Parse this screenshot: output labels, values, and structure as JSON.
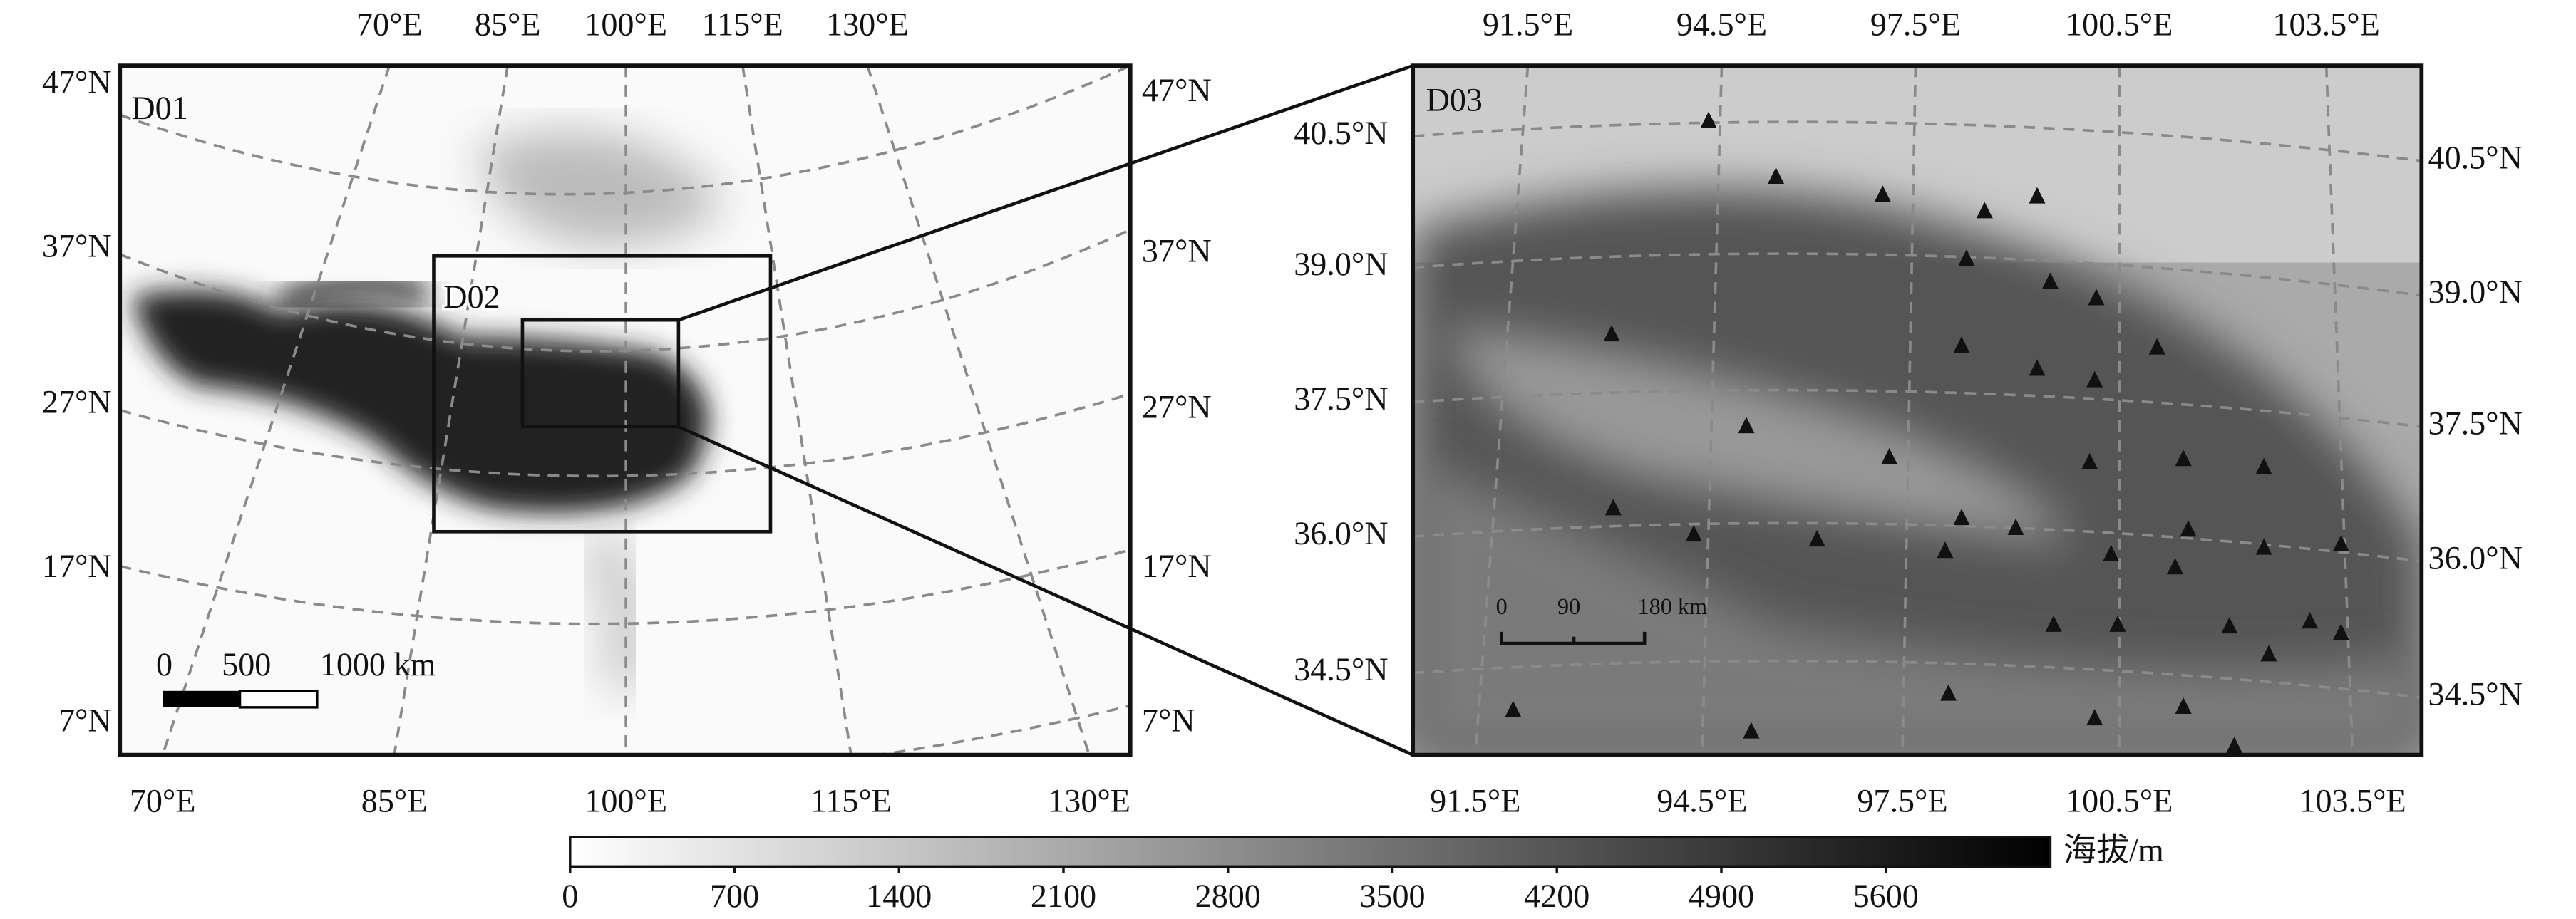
{
  "maps": [
    {
      "label": "D01",
      "inner_label": "D02",
      "lon_top": [
        "70°E",
        "85°E",
        "100°E",
        "115°E",
        "130°E"
      ],
      "lon_bottom": [
        "70°E",
        "85°E",
        "100°E",
        "115°E",
        "130°E"
      ],
      "lat_left": [
        "47°N",
        "37°N",
        "27°N",
        "17°N",
        "7°N"
      ],
      "lat_right": [
        "47°N",
        "37°N",
        "27°N",
        "17°N",
        "7°N"
      ],
      "scale": [
        "0",
        "500",
        "1000 km"
      ]
    },
    {
      "label": "D03",
      "lon_top": [
        "91.5°E",
        "94.5°E",
        "97.5°E",
        "100.5°E",
        "103.5°E"
      ],
      "lon_bottom": [
        "91.5°E",
        "94.5°E",
        "97.5°E",
        "100.5°E",
        "103.5°E"
      ],
      "lat_left": [
        "40.5°N",
        "39.0°N",
        "37.5°N",
        "36.0°N",
        "34.5°N"
      ],
      "lat_right": [
        "40.5°N",
        "39.0°N",
        "37.5°N",
        "36.0°N",
        "34.5°N"
      ],
      "scale": [
        "0",
        "90",
        "180 km"
      ]
    }
  ],
  "colorbar": {
    "label": "海拔/m",
    "lim": [
      0,
      6300
    ],
    "ticks": [
      0,
      700,
      1400,
      2100,
      2800,
      3500,
      4200,
      4900,
      5600
    ]
  }
}
